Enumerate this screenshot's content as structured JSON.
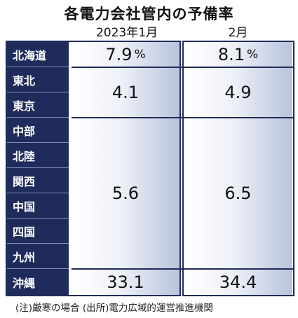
{
  "title": "各電力会社管内の予備率",
  "note": "(注)厳寒の場合 (出所)電力広域的運営推進機関",
  "chart_data": {
    "type": "table",
    "title": "各電力会社管内の予備率",
    "columns": [
      "2023年1月",
      "2月"
    ],
    "unit": "%",
    "regions": [
      "北海道",
      "東北",
      "東京",
      "中部",
      "北陸",
      "関西",
      "中国",
      "四国",
      "九州",
      "沖縄"
    ],
    "groups": [
      {
        "regions": [
          "北海道"
        ],
        "values": [
          "7.9",
          "8.1"
        ],
        "show_unit": true
      },
      {
        "regions": [
          "東北",
          "東京"
        ],
        "values": [
          "4.1",
          "4.9"
        ],
        "show_unit": false
      },
      {
        "regions": [
          "中部",
          "北陸",
          "関西",
          "中国",
          "四国",
          "九州"
        ],
        "values": [
          "5.6",
          "6.5"
        ],
        "show_unit": false
      },
      {
        "regions": [
          "沖縄"
        ],
        "values": [
          "33.1",
          "34.4"
        ],
        "show_unit": false
      }
    ]
  }
}
